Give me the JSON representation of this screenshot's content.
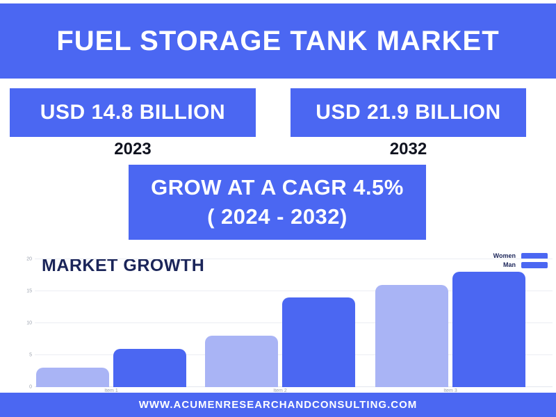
{
  "header": {
    "title": "FUEL STORAGE TANK MARKET"
  },
  "stat_boxes": {
    "left": {
      "value": "USD 14.8 BILLION",
      "year": "2023"
    },
    "right": {
      "value": "USD 21.9 BILLION",
      "year": "2032"
    }
  },
  "cagr_box": {
    "line1": "GROW AT A CAGR 4.5%",
    "line2": "( 2024 - 2032)"
  },
  "chart_data": {
    "type": "bar",
    "title": "MARKET GROWTH",
    "categories": [
      "Item 1",
      "Item 2",
      "Item 3"
    ],
    "series": [
      {
        "name": "Women",
        "color": "#a9b4f5",
        "values": [
          3,
          8,
          16
        ]
      },
      {
        "name": "Man",
        "color": "#4b67f2",
        "values": [
          6,
          14,
          18
        ]
      }
    ],
    "ylim": [
      0,
      20
    ],
    "yticks": [
      0,
      5,
      10,
      15,
      20
    ],
    "grid": true,
    "legend_position": "top-right",
    "legend_swatch_color": "#4b67f2"
  },
  "footer": {
    "url": "WWW.ACUMENRESEARCHANDCONSULTING.COM"
  },
  "colors": {
    "primary_blue": "#4b67f2",
    "light_bar": "#a9b4f5",
    "navy_text": "#1b2559"
  }
}
